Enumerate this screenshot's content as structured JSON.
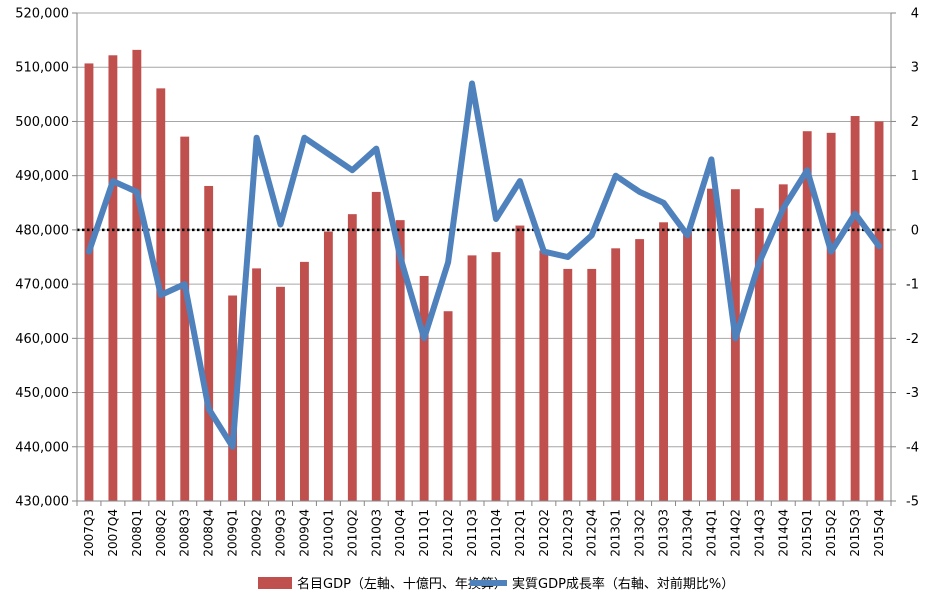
{
  "chart_data": {
    "type": "bar",
    "categories": [
      "2007Q3",
      "2007Q4",
      "2008Q1",
      "2008Q2",
      "2008Q3",
      "2008Q4",
      "2009Q1",
      "2009Q2",
      "2009Q3",
      "2009Q4",
      "2010Q1",
      "2010Q2",
      "2010Q3",
      "2010Q4",
      "2011Q1",
      "2011Q2",
      "2011Q3",
      "2011Q4",
      "2012Q1",
      "2012Q2",
      "2012Q3",
      "2012Q4",
      "2013Q1",
      "2013Q2",
      "2013Q3",
      "2013Q4",
      "2014Q1",
      "2014Q2",
      "2014Q3",
      "2014Q4",
      "2015Q1",
      "2015Q2",
      "2015Q3",
      "2015Q4"
    ],
    "series": [
      {
        "name": "名目GDP（左軸、十億円、年換算）",
        "type": "bar",
        "axis": "left",
        "color": "#C0504D",
        "values": [
          510700,
          512200,
          513200,
          506100,
          497200,
          488100,
          467900,
          472900,
          469500,
          474100,
          479700,
          482900,
          487000,
          481800,
          471500,
          465000,
          475300,
          475900,
          480800,
          476200,
          472800,
          472800,
          476600,
          478300,
          481400,
          479600,
          487600,
          487500,
          484000,
          488400,
          498200,
          497900,
          501000,
          500000
        ]
      },
      {
        "name": "実質GDP成長率（右軸、対前期比%）",
        "type": "line",
        "axis": "right",
        "color": "#4F81BD",
        "values": [
          -0.4,
          0.9,
          0.7,
          -1.2,
          -1.0,
          -3.3,
          -4.0,
          1.7,
          0.1,
          1.7,
          1.4,
          1.1,
          1.5,
          -0.5,
          -2.0,
          -0.6,
          2.7,
          0.2,
          0.9,
          -0.4,
          -0.5,
          -0.1,
          1.0,
          0.7,
          0.5,
          -0.1,
          1.3,
          -2.0,
          -0.6,
          0.4,
          1.1,
          -0.4,
          0.3,
          -0.3
        ]
      }
    ],
    "y_left": {
      "min": 430000,
      "max": 520000,
      "step": 10000,
      "ticks": [
        "430,000",
        "440,000",
        "450,000",
        "460,000",
        "470,000",
        "480,000",
        "490,000",
        "500,000",
        "510,000",
        "520,000"
      ]
    },
    "y_right": {
      "min": -5,
      "max": 4,
      "step": 1,
      "ticks": [
        "-5",
        "-4",
        "-3",
        "-2",
        "-1",
        "0",
        "1",
        "2",
        "3",
        "4"
      ]
    },
    "reference_line": {
      "axis": "right",
      "value": 0,
      "style": "dotted"
    },
    "grid": true,
    "legend_position": "bottom",
    "title": "",
    "xlabel": "",
    "ylabel": ""
  }
}
